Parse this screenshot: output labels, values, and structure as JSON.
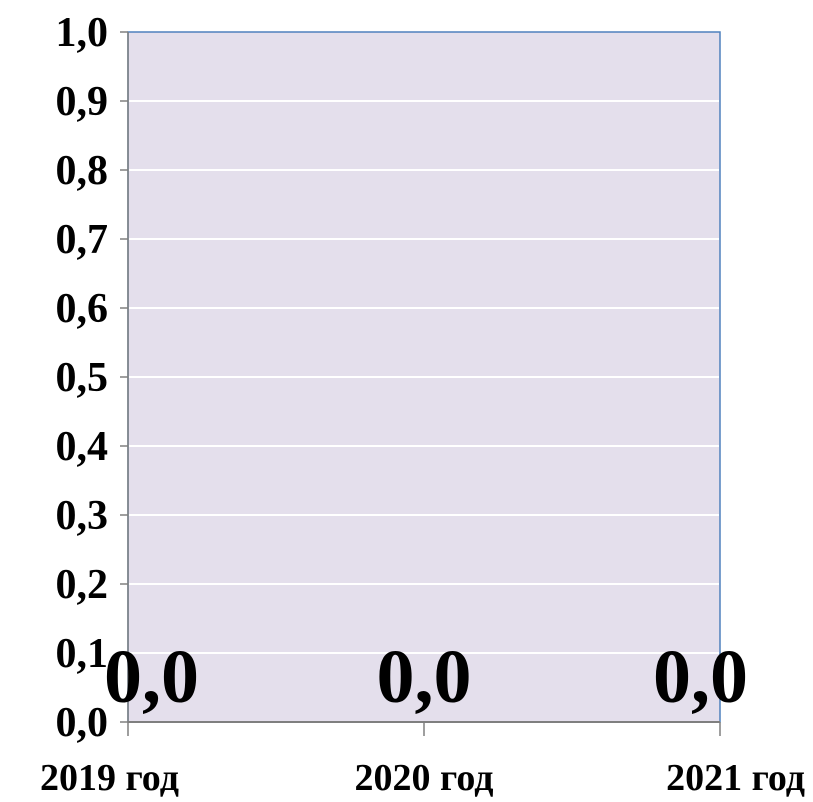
{
  "chart_data": {
    "type": "bar",
    "title": "",
    "xlabel": "",
    "ylabel": "",
    "categories": [
      "2019 год",
      "2020 год",
      "2021 год"
    ],
    "values": [
      0.0,
      0.0,
      0.0
    ],
    "data_labels": [
      "0,0",
      "0,0",
      "0,0"
    ],
    "ylim": [
      0,
      1.0
    ],
    "yticks": [
      "0,0",
      "0,1",
      "0,2",
      "0,3",
      "0,4",
      "0,5",
      "0,6",
      "0,7",
      "0,8",
      "0,9",
      "1,0"
    ],
    "grid": true,
    "legend": "none",
    "colors": {
      "plot_background": "#e4dfec",
      "plot_border": "#4f81bd",
      "gridline": "#ffffff",
      "axis": "#7f7f7f"
    }
  }
}
